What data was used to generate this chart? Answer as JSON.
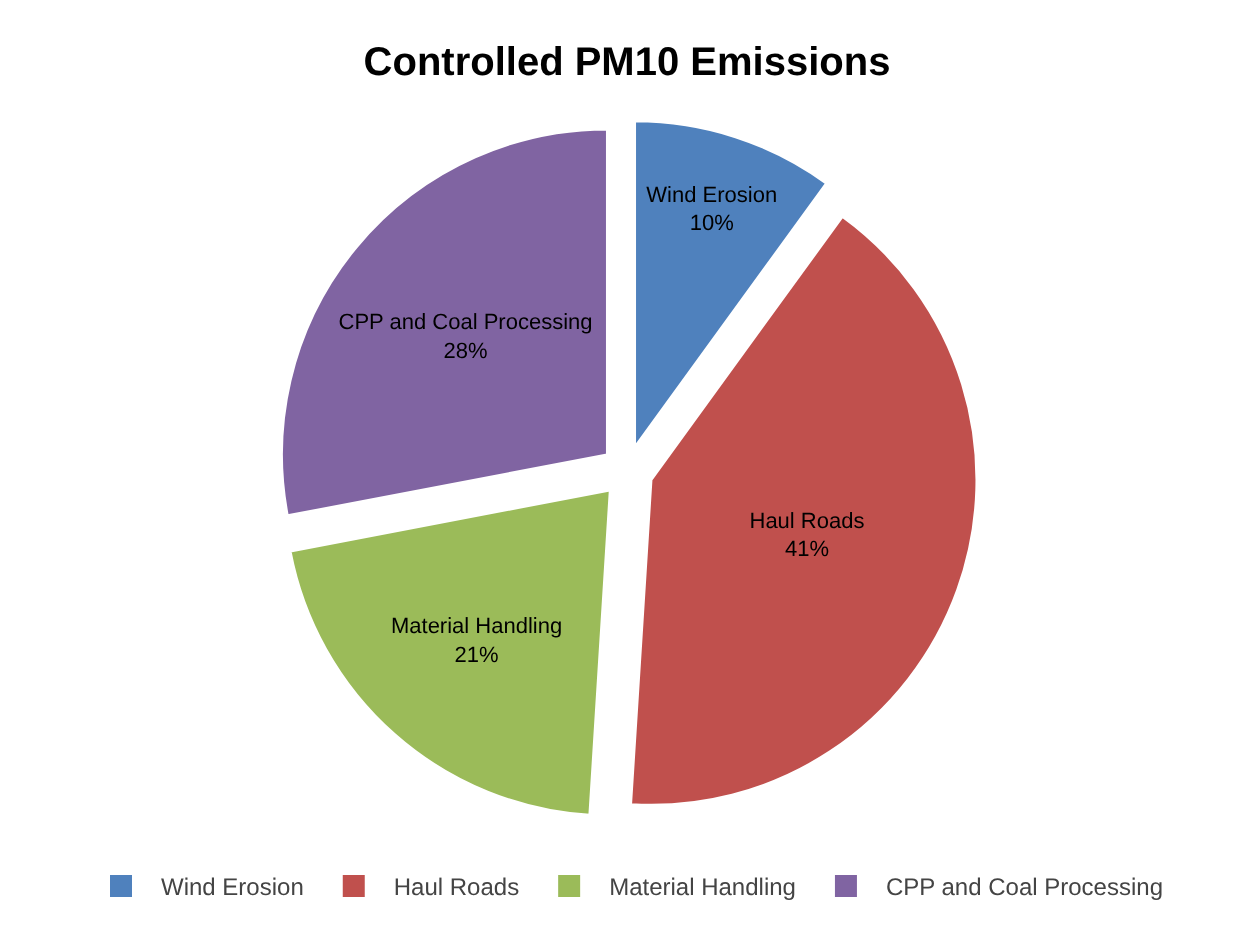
{
  "chart_data": {
    "type": "pie",
    "title": "Controlled PM10 Emissions",
    "categories": [
      "Wind Erosion",
      "Haul Roads",
      "Material Handling",
      "CPP and Coal Processing"
    ],
    "values": [
      10,
      41,
      21,
      28
    ],
    "value_labels": [
      "10%",
      "41%",
      "21%",
      "28%"
    ],
    "colors": [
      "#4f81bd",
      "#c0504d",
      "#9bbb59",
      "#8064a2"
    ],
    "legend": "bottom"
  }
}
